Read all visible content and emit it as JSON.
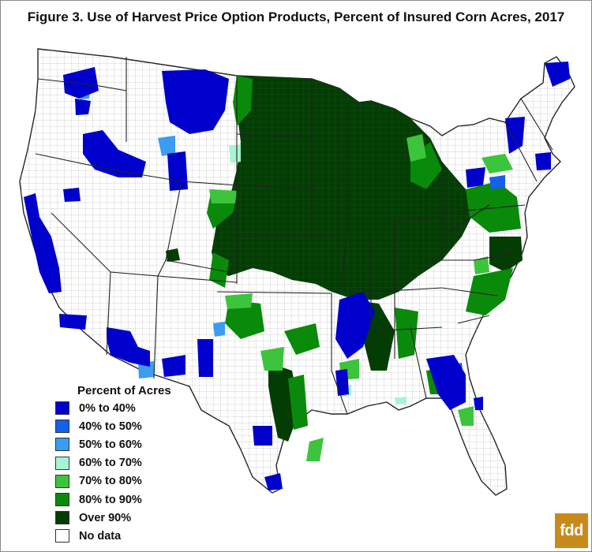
{
  "title": "Figure 3. Use of Harvest Price Option Products, Percent of Insured Corn Acres, 2017",
  "legend": {
    "title": "Percent of Acres",
    "items": [
      {
        "label": "0% to 40%",
        "color": "#0000cc"
      },
      {
        "label": "40% to 50%",
        "color": "#1560e8"
      },
      {
        "label": "50% to 60%",
        "color": "#3c9cf0"
      },
      {
        "label": "60% to 70%",
        "color": "#a6f5d2"
      },
      {
        "label": "70% to 80%",
        "color": "#3cc43c"
      },
      {
        "label": "80% to 90%",
        "color": "#0a8a0a"
      },
      {
        "label": "Over 90%",
        "color": "#033d03"
      },
      {
        "label": "No data",
        "color": "#ffffff"
      }
    ]
  },
  "logo_text": "fdd",
  "colors": {
    "background": "#ffffff",
    "state_border": "#222222",
    "county_border": "#9a9a9a",
    "logo": "#c98a1c"
  }
}
